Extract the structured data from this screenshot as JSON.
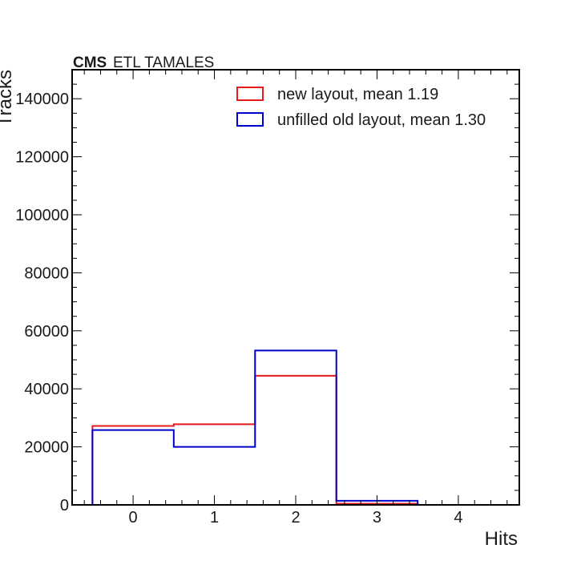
{
  "chart_data": {
    "type": "histogram-step",
    "experiment_label": "CMS",
    "extra_label": "ETL TAMALES",
    "xlabel": "Hits",
    "ylabel": "Tracks",
    "xlim": [
      -0.75,
      4.75
    ],
    "ylim": [
      0,
      150000
    ],
    "x_ticks": [
      0,
      1,
      2,
      3,
      4
    ],
    "y_ticks": [
      0,
      20000,
      40000,
      60000,
      80000,
      100000,
      120000,
      140000
    ],
    "bins": [
      -0.5,
      0.5,
      1.5,
      2.5,
      3.5,
      4.5
    ],
    "legend_position": "top-right",
    "series": [
      {
        "name": "new layout, mean 1.19",
        "color": "#e41a1c",
        "values": [
          27200,
          27800,
          44500,
          400,
          0
        ]
      },
      {
        "name": "unfilled old layout, mean 1.30",
        "color": "#0000cc",
        "values": [
          25800,
          20000,
          53200,
          1400,
          0
        ]
      }
    ]
  }
}
